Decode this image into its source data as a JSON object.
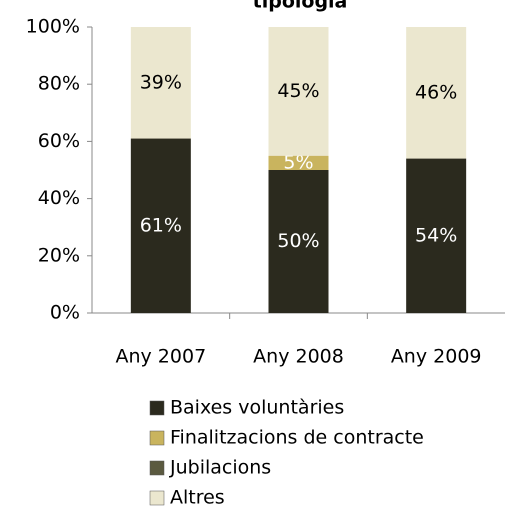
{
  "chart_data": {
    "type": "stacked_bar",
    "title": "tipologia",
    "categories": [
      "Any 2007",
      "Any 2008",
      "Any 2009"
    ],
    "series": [
      {
        "name": "Baixes voluntàries",
        "color": "#2b2a1e",
        "values": [
          61,
          50,
          54
        ],
        "value_labels": [
          "61%",
          "50%",
          "54%"
        ]
      },
      {
        "name": "Finalitzacions de contracte",
        "color": "#c9b45e",
        "values": [
          0,
          5,
          0
        ],
        "value_labels": [
          null,
          "5%",
          null
        ]
      },
      {
        "name": "Jubilacions",
        "color": "#5b5a40",
        "values": [
          0,
          0,
          0
        ],
        "value_labels": [
          null,
          null,
          null
        ]
      },
      {
        "name": "Altres",
        "color": "#ebe7cf",
        "values": [
          39,
          45,
          46
        ],
        "value_labels": [
          "39%",
          "45%",
          "46%"
        ]
      }
    ],
    "ylim": [
      0,
      100
    ],
    "yticks": [
      {
        "value": 0,
        "label": "0%"
      },
      {
        "value": 20,
        "label": "20%"
      },
      {
        "value": 40,
        "label": "40%"
      },
      {
        "value": 60,
        "label": "60%"
      },
      {
        "value": 80,
        "label": "80%"
      },
      {
        "value": 100,
        "label": "100%"
      }
    ],
    "legend": "bottom"
  }
}
